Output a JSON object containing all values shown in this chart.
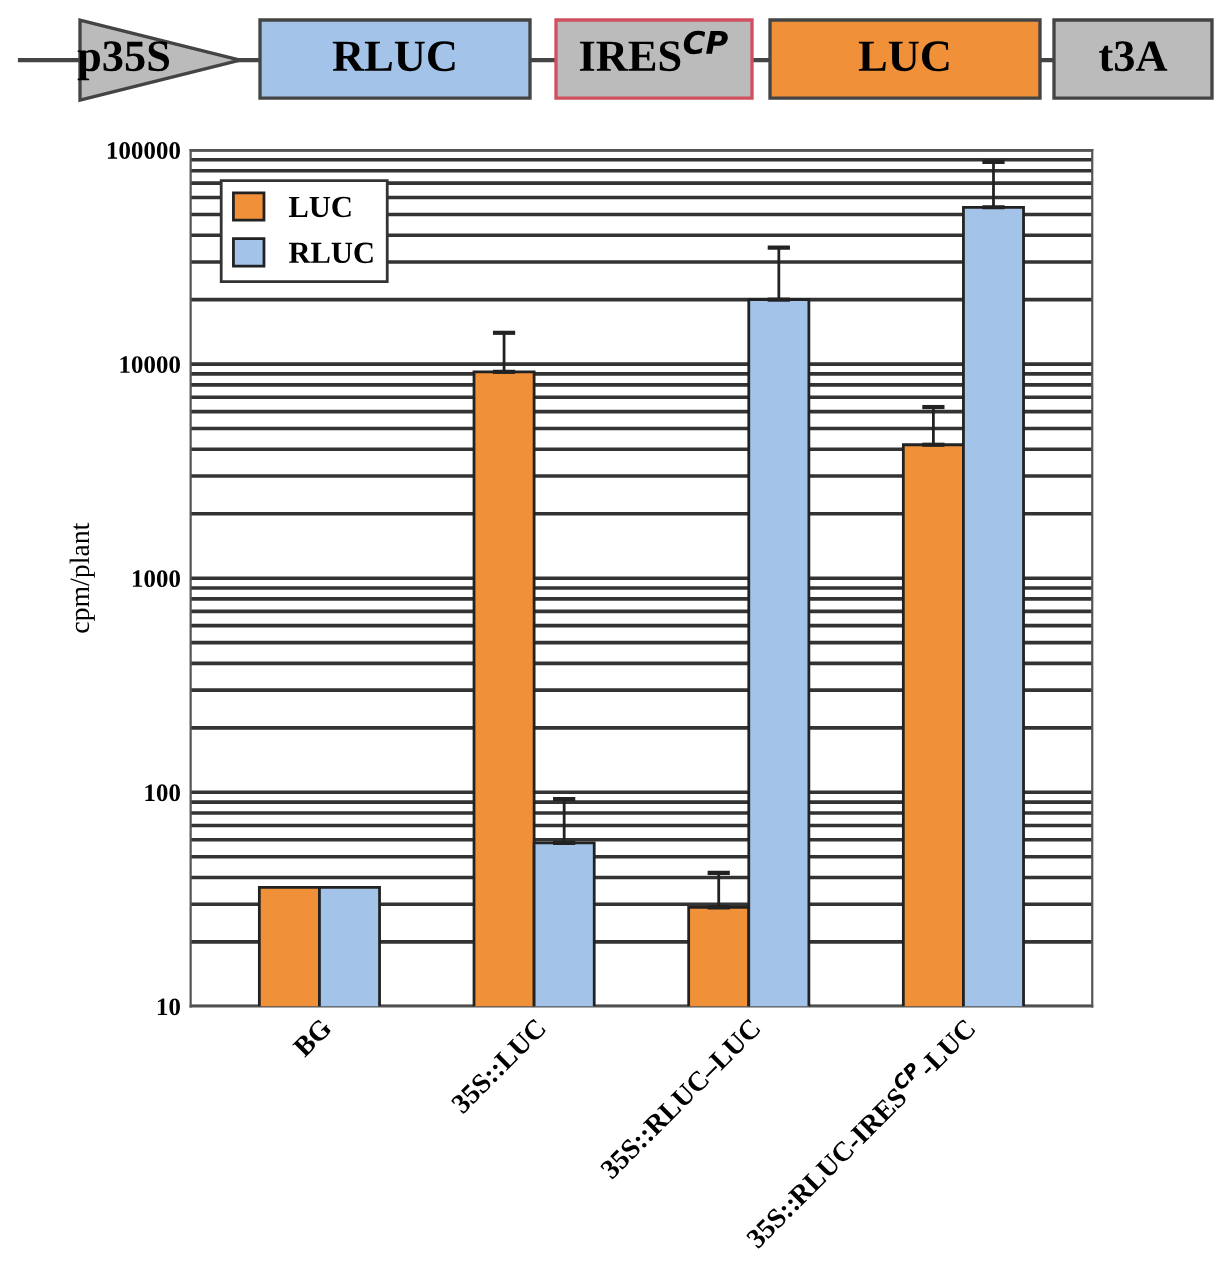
{
  "chart_data": {
    "type": "bar",
    "ylabel": "cpm/plant",
    "categories": [
      "BG",
      "35S::LUC",
      "35S::RLUC–LUC",
      "35S::RLUC-IRES$^{CP}$-LUC"
    ],
    "series": [
      {
        "name": "LUC",
        "color": "#f0913a",
        "values": [
          36,
          9200,
          29,
          4200
        ],
        "errors": [
          null,
          [
            9200,
            14000
          ],
          [
            29,
            42
          ],
          [
            4200,
            6300
          ]
        ]
      },
      {
        "name": "RLUC",
        "color": "#a3c4e8",
        "values": [
          36,
          58,
          20000,
          54000
        ],
        "errors": [
          null,
          [
            58,
            93
          ],
          [
            20000,
            35000
          ],
          [
            54000,
            88000
          ]
        ]
      }
    ],
    "log": "y",
    "ylim": [
      10,
      100000
    ],
    "yticks": [
      10,
      100,
      1000,
      10000,
      100000
    ],
    "grid": "y",
    "legend": "top left",
    "annotations": [
      "p35S",
      "RLUC",
      "IRES$^{CP}$",
      "LUC",
      "t3A"
    ]
  }
}
